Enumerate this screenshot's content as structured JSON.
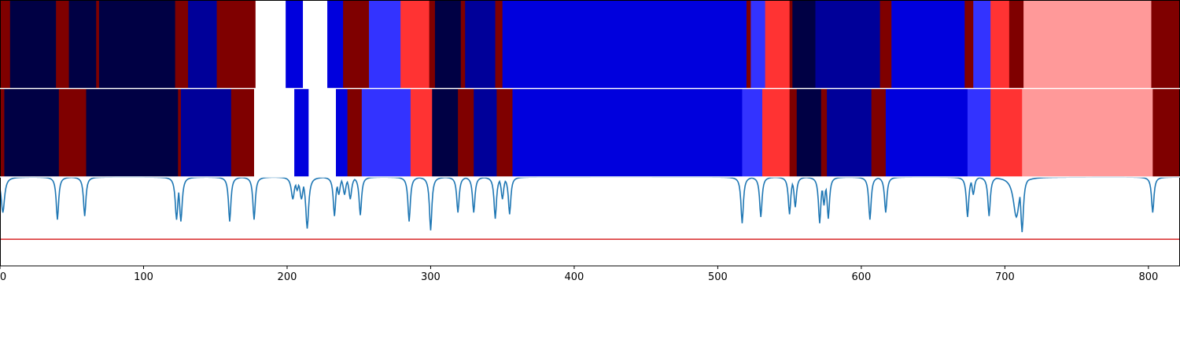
{
  "chart_data": {
    "type": "heatmap",
    "xlim": [
      0,
      822
    ],
    "x_ticks": [
      0,
      100,
      200,
      300,
      400,
      500,
      600,
      700,
      800
    ],
    "x_tick_labels": [
      "0",
      "100",
      "200",
      "300",
      "400",
      "500",
      "600",
      "700",
      "800"
    ],
    "colors": {
      "dark_red": "#7f0000",
      "navy": "#000044",
      "dark_blue": "#000099",
      "blue": "#0000dd",
      "light_blue": "#3333ff",
      "white": "#ffffff",
      "red": "#ff3333",
      "pink": "#ff9999",
      "trace": "#1f77b4",
      "threshold": "#d62728"
    },
    "rows": [
      {
        "segments": [
          {
            "start": 0,
            "end": 7,
            "color": "dark_red"
          },
          {
            "start": 7,
            "end": 39,
            "color": "navy"
          },
          {
            "start": 39,
            "end": 48,
            "color": "dark_red"
          },
          {
            "start": 48,
            "end": 67,
            "color": "navy"
          },
          {
            "start": 67,
            "end": 69,
            "color": "dark_red"
          },
          {
            "start": 69,
            "end": 122,
            "color": "navy"
          },
          {
            "start": 122,
            "end": 131,
            "color": "dark_red"
          },
          {
            "start": 131,
            "end": 151,
            "color": "dark_blue"
          },
          {
            "start": 151,
            "end": 178,
            "color": "dark_red"
          },
          {
            "start": 178,
            "end": 199,
            "color": "white"
          },
          {
            "start": 199,
            "end": 211,
            "color": "blue"
          },
          {
            "start": 211,
            "end": 228,
            "color": "white"
          },
          {
            "start": 228,
            "end": 239,
            "color": "blue"
          },
          {
            "start": 239,
            "end": 257,
            "color": "dark_red"
          },
          {
            "start": 257,
            "end": 279,
            "color": "light_blue"
          },
          {
            "start": 279,
            "end": 299,
            "color": "red"
          },
          {
            "start": 299,
            "end": 303,
            "color": "dark_red"
          },
          {
            "start": 303,
            "end": 321,
            "color": "navy"
          },
          {
            "start": 321,
            "end": 324,
            "color": "dark_red"
          },
          {
            "start": 324,
            "end": 345,
            "color": "dark_blue"
          },
          {
            "start": 345,
            "end": 350,
            "color": "dark_red"
          },
          {
            "start": 350,
            "end": 520,
            "color": "blue"
          },
          {
            "start": 520,
            "end": 523,
            "color": "dark_red"
          },
          {
            "start": 523,
            "end": 533,
            "color": "light_blue"
          },
          {
            "start": 533,
            "end": 550,
            "color": "red"
          },
          {
            "start": 550,
            "end": 552,
            "color": "dark_red"
          },
          {
            "start": 552,
            "end": 568,
            "color": "navy"
          },
          {
            "start": 568,
            "end": 613,
            "color": "dark_blue"
          },
          {
            "start": 613,
            "end": 621,
            "color": "dark_red"
          },
          {
            "start": 621,
            "end": 672,
            "color": "blue"
          },
          {
            "start": 672,
            "end": 678,
            "color": "dark_red"
          },
          {
            "start": 678,
            "end": 690,
            "color": "light_blue"
          },
          {
            "start": 690,
            "end": 703,
            "color": "red"
          },
          {
            "start": 703,
            "end": 713,
            "color": "dark_red"
          },
          {
            "start": 713,
            "end": 802,
            "color": "pink"
          },
          {
            "start": 802,
            "end": 822,
            "color": "dark_red"
          }
        ]
      },
      {
        "segments": [
          {
            "start": 0,
            "end": 3,
            "color": "dark_red"
          },
          {
            "start": 3,
            "end": 41,
            "color": "navy"
          },
          {
            "start": 41,
            "end": 60,
            "color": "dark_red"
          },
          {
            "start": 60,
            "end": 124,
            "color": "navy"
          },
          {
            "start": 124,
            "end": 126,
            "color": "dark_red"
          },
          {
            "start": 126,
            "end": 161,
            "color": "dark_blue"
          },
          {
            "start": 161,
            "end": 177,
            "color": "dark_red"
          },
          {
            "start": 177,
            "end": 205,
            "color": "white"
          },
          {
            "start": 205,
            "end": 215,
            "color": "blue"
          },
          {
            "start": 215,
            "end": 234,
            "color": "white"
          },
          {
            "start": 234,
            "end": 242,
            "color": "blue"
          },
          {
            "start": 242,
            "end": 252,
            "color": "dark_red"
          },
          {
            "start": 252,
            "end": 286,
            "color": "light_blue"
          },
          {
            "start": 286,
            "end": 301,
            "color": "red"
          },
          {
            "start": 301,
            "end": 319,
            "color": "navy"
          },
          {
            "start": 319,
            "end": 330,
            "color": "dark_red"
          },
          {
            "start": 330,
            "end": 346,
            "color": "dark_blue"
          },
          {
            "start": 346,
            "end": 357,
            "color": "dark_red"
          },
          {
            "start": 357,
            "end": 517,
            "color": "blue"
          },
          {
            "start": 517,
            "end": 531,
            "color": "light_blue"
          },
          {
            "start": 531,
            "end": 550,
            "color": "red"
          },
          {
            "start": 550,
            "end": 555,
            "color": "dark_red"
          },
          {
            "start": 555,
            "end": 572,
            "color": "navy"
          },
          {
            "start": 572,
            "end": 576,
            "color": "dark_red"
          },
          {
            "start": 576,
            "end": 607,
            "color": "dark_blue"
          },
          {
            "start": 607,
            "end": 617,
            "color": "dark_red"
          },
          {
            "start": 617,
            "end": 674,
            "color": "blue"
          },
          {
            "start": 674,
            "end": 690,
            "color": "light_blue"
          },
          {
            "start": 690,
            "end": 712,
            "color": "red"
          },
          {
            "start": 712,
            "end": 803,
            "color": "pink"
          },
          {
            "start": 803,
            "end": 822,
            "color": "dark_red"
          }
        ]
      }
    ],
    "line": {
      "ylim": [
        0,
        1
      ],
      "threshold": 0.3,
      "baseline": 1.0,
      "dips": [
        {
          "x": 2,
          "y": 0.6,
          "w": 1.4
        },
        {
          "x": 40,
          "y": 0.52,
          "w": 1.0
        },
        {
          "x": 59,
          "y": 0.56,
          "w": 1.0
        },
        {
          "x": 123,
          "y": 0.52,
          "w": 1.1
        },
        {
          "x": 126,
          "y": 0.5,
          "w": 1.1
        },
        {
          "x": 160,
          "y": 0.5,
          "w": 1.0
        },
        {
          "x": 177,
          "y": 0.52,
          "w": 1.0
        },
        {
          "x": 204,
          "y": 0.75,
          "w": 1.3
        },
        {
          "x": 207,
          "y": 0.85,
          "w": 1.3
        },
        {
          "x": 210,
          "y": 0.75,
          "w": 1.3
        },
        {
          "x": 214,
          "y": 0.42,
          "w": 1.2
        },
        {
          "x": 233,
          "y": 0.56,
          "w": 1.0
        },
        {
          "x": 236,
          "y": 0.8,
          "w": 1.1
        },
        {
          "x": 240,
          "y": 0.8,
          "w": 1.1
        },
        {
          "x": 244,
          "y": 0.75,
          "w": 1.1
        },
        {
          "x": 251,
          "y": 0.57,
          "w": 1.0
        },
        {
          "x": 285,
          "y": 0.5,
          "w": 1.0
        },
        {
          "x": 300,
          "y": 0.4,
          "w": 1.0
        },
        {
          "x": 319,
          "y": 0.6,
          "w": 1.0
        },
        {
          "x": 330,
          "y": 0.6,
          "w": 1.0
        },
        {
          "x": 345,
          "y": 0.53,
          "w": 1.0
        },
        {
          "x": 350,
          "y": 0.75,
          "w": 1.0
        },
        {
          "x": 355,
          "y": 0.58,
          "w": 1.0
        },
        {
          "x": 517,
          "y": 0.48,
          "w": 1.0
        },
        {
          "x": 530,
          "y": 0.55,
          "w": 1.0
        },
        {
          "x": 550,
          "y": 0.58,
          "w": 1.0
        },
        {
          "x": 554,
          "y": 0.66,
          "w": 1.0
        },
        {
          "x": 571,
          "y": 0.48,
          "w": 1.0
        },
        {
          "x": 574,
          "y": 0.68,
          "w": 1.0
        },
        {
          "x": 577,
          "y": 0.53,
          "w": 1.0
        },
        {
          "x": 606,
          "y": 0.52,
          "w": 1.0
        },
        {
          "x": 617,
          "y": 0.6,
          "w": 1.0
        },
        {
          "x": 674,
          "y": 0.55,
          "w": 1.0
        },
        {
          "x": 678,
          "y": 0.8,
          "w": 1.0
        },
        {
          "x": 689,
          "y": 0.56,
          "w": 1.0
        },
        {
          "x": 708,
          "y": 0.55,
          "w": 2.5
        },
        {
          "x": 712,
          "y": 0.38,
          "w": 1.1
        },
        {
          "x": 803,
          "y": 0.6,
          "w": 1.0
        }
      ]
    }
  }
}
